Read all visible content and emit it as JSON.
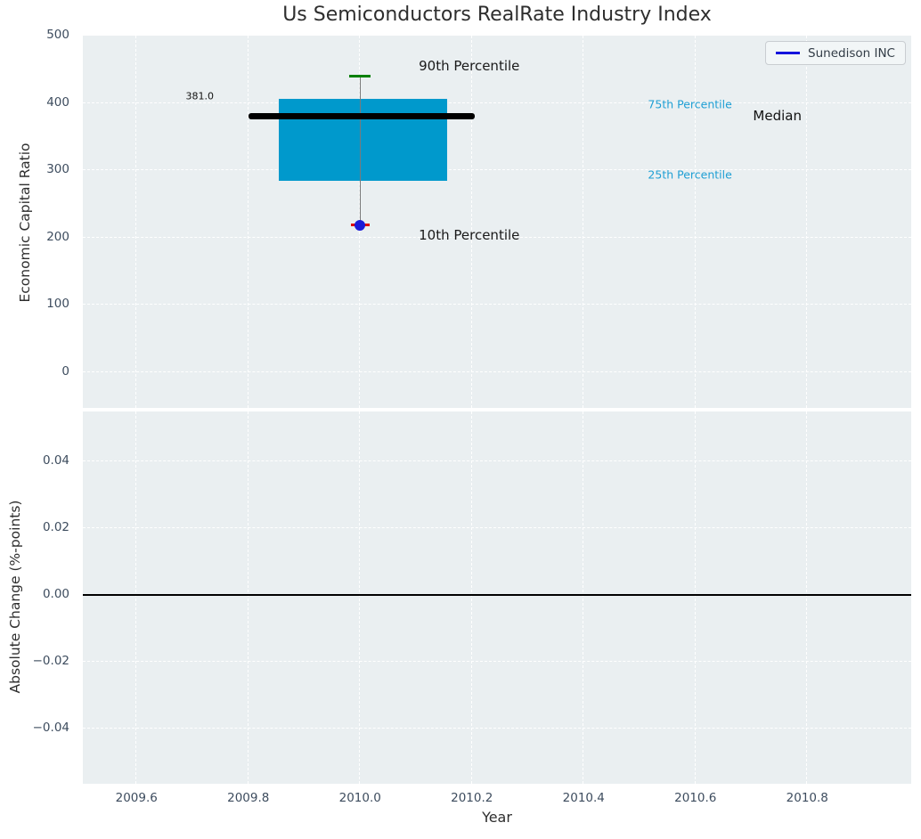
{
  "title": "Us Semiconductors RealRate Industry Index",
  "legend": {
    "label": "Sunedison INC"
  },
  "colors": {
    "plot_bg": "#eaeff1",
    "grid": "#ffffff",
    "tick_label": "#3d4c5e",
    "axis_label": "#2e2e2e",
    "title": "#2e2e2e",
    "box_fill": "#0099cc",
    "median_line": "#000000",
    "p90_cap": "#008000",
    "p10_dash": "#dd0000",
    "company_marker": "#1b1bd8",
    "legend_line": "#1414dd",
    "percentile_text": "#1f9fd4",
    "whisker": "#7a7a7a",
    "zero_line": "#000000"
  },
  "chart_data": [
    {
      "type": "box",
      "title": "Us Semiconductors RealRate Industry Index",
      "ylabel": "Economic Capital Ratio",
      "xlabel": "",
      "xlim": [
        2009.504,
        2010.986
      ],
      "ylim": [
        -53,
        500.5
      ],
      "yticks": [
        500,
        400,
        300,
        200,
        100,
        0
      ],
      "ytick_labels": [
        "500",
        "400",
        "300",
        "200",
        "100",
        "0"
      ],
      "grid": true,
      "legend_entries": [
        {
          "name": "Sunedison INC",
          "color": "#1414dd",
          "position": "upper right"
        }
      ],
      "box": {
        "x_center": 2010.0,
        "box_x_left": 2009.855,
        "box_x_right": 2010.155,
        "median_x_left": 2009.8,
        "median_x_right": 2010.205,
        "cap_half_width": 0.019,
        "p90": 440,
        "p75": 407,
        "median": 381.0,
        "p25": 284,
        "p10": 219,
        "company_value": 219
      },
      "annotations": [
        {
          "id": "p90-label",
          "text": "90th Percentile",
          "x": 2010.105,
          "y": 455,
          "color": "#1a1a1a",
          "size": 15
        },
        {
          "id": "p10-label",
          "text": "10th Percentile",
          "x": 2010.105,
          "y": 204,
          "color": "#1a1a1a",
          "size": 15
        },
        {
          "id": "median-value-label",
          "text": "381.0",
          "x": 2009.688,
          "y": 411,
          "color": "#111111",
          "size": 11
        },
        {
          "id": "p75-label",
          "text": "75th Percentile",
          "x": 2010.515,
          "y": 398,
          "color": "#1f9fd4",
          "size": 12.5
        },
        {
          "id": "p25-label",
          "text": "25th Percentile",
          "x": 2010.515,
          "y": 294,
          "color": "#1f9fd4",
          "size": 12.5
        },
        {
          "id": "median-label",
          "text": "Median",
          "x": 2010.703,
          "y": 381,
          "color": "#111111",
          "size": 15
        }
      ]
    },
    {
      "type": "line",
      "ylabel": "Absolute Change (%-points)",
      "xlabel": "Year",
      "xlim": [
        2009.504,
        2010.986
      ],
      "ylim": [
        -0.0566,
        0.0549
      ],
      "yticks": [
        0.04,
        0.02,
        0,
        -0.02,
        -0.04
      ],
      "ytick_labels": [
        "0.04",
        "0.02",
        "0.00",
        "−0.02",
        "−0.04"
      ],
      "xticks": [
        2009.6,
        2009.8,
        2010,
        2010.2,
        2010.4,
        2010.6,
        2010.8
      ],
      "xtick_labels": [
        "2009.6",
        "2009.8",
        "2010.0",
        "2010.2",
        "2010.4",
        "2010.6",
        "2010.8"
      ],
      "zero_line": 0,
      "grid": true,
      "series": []
    }
  ]
}
